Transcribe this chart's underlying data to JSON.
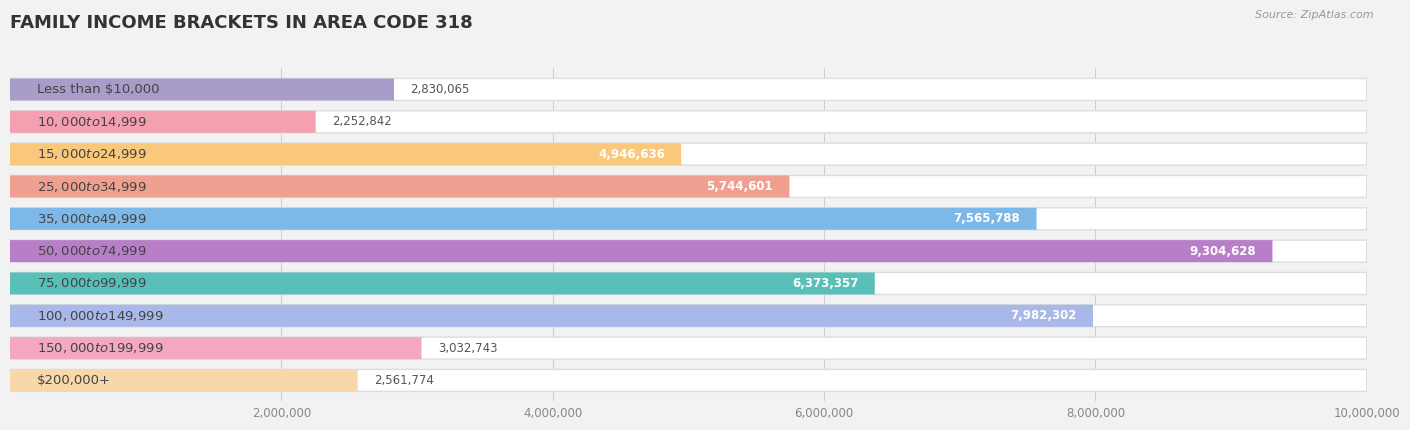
{
  "title": "FAMILY INCOME BRACKETS IN AREA CODE 318",
  "source": "Source: ZipAtlas.com",
  "categories": [
    "Less than $10,000",
    "$10,000 to $14,999",
    "$15,000 to $24,999",
    "$25,000 to $34,999",
    "$35,000 to $49,999",
    "$50,000 to $74,999",
    "$75,000 to $99,999",
    "$100,000 to $149,999",
    "$150,000 to $199,999",
    "$200,000+"
  ],
  "values": [
    2830065,
    2252842,
    4946636,
    5744601,
    7565788,
    9304628,
    6373357,
    7982302,
    3032743,
    2561774
  ],
  "bar_colors": [
    "#a89cc8",
    "#f4a0b0",
    "#f9c87a",
    "#f0a090",
    "#7eb8e8",
    "#b87ec8",
    "#58c0b8",
    "#a8b8e8",
    "#f4a8c0",
    "#f8d8a8"
  ],
  "background_color": "#f2f2f2",
  "xlim": [
    0,
    10000000
  ],
  "xticks": [
    0,
    2000000,
    4000000,
    6000000,
    8000000,
    10000000
  ],
  "xtick_labels": [
    "",
    "2,000,000",
    "4,000,000",
    "6,000,000",
    "8,000,000",
    "10,000,000"
  ],
  "title_fontsize": 13,
  "label_fontsize": 9.5,
  "value_fontsize": 8.5,
  "value_threshold": 3200000
}
